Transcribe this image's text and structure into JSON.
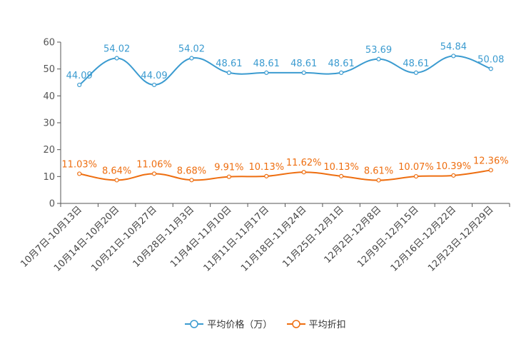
{
  "colors": {
    "price": "#3b9bd0",
    "discount": "#ee6e10",
    "axis": "#555555"
  },
  "chart_data": {
    "type": "line",
    "title": "",
    "xlabel": "",
    "ylabel": "",
    "ylim": [
      0,
      60
    ],
    "yticks": [
      0,
      10,
      20,
      30,
      40,
      50,
      60
    ],
    "grid": false,
    "legend_position": "bottom",
    "categories": [
      "10月7日-10月13日",
      "10月14日-10月20日",
      "10月21日-10月27日",
      "10月28日-11月3日",
      "11月4日-11月10日",
      "11月11日-11月17日",
      "11月18日-11月24日",
      "11月25日-12月1日",
      "12月2日-12月8日",
      "12月9日-12月15日",
      "12月16日-12月22日",
      "12月23日-12月29日"
    ],
    "series": [
      {
        "name": "平均价格（万）",
        "key": "price",
        "values": [
          44.09,
          54.02,
          44.09,
          54.02,
          48.61,
          48.61,
          48.61,
          48.61,
          53.69,
          48.61,
          54.84,
          50.08
        ],
        "labels": [
          "44.09",
          "54.02",
          "44.09",
          "54.02",
          "48.61",
          "48.61",
          "48.61",
          "48.61",
          "53.69",
          "48.61",
          "54.84",
          "50.08"
        ]
      },
      {
        "name": "平均折扣",
        "key": "discount",
        "values": [
          11.03,
          8.64,
          11.06,
          8.68,
          9.91,
          10.13,
          11.62,
          10.13,
          8.61,
          10.07,
          10.39,
          12.36
        ],
        "labels": [
          "11.03%",
          "8.64%",
          "11.06%",
          "8.68%",
          "9.91%",
          "10.13%",
          "11.62%",
          "10.13%",
          "8.61%",
          "10.07%",
          "10.39%",
          "12.36%"
        ]
      }
    ]
  },
  "legend": {
    "price_label": "平均价格（万）",
    "discount_label": "平均折扣"
  }
}
